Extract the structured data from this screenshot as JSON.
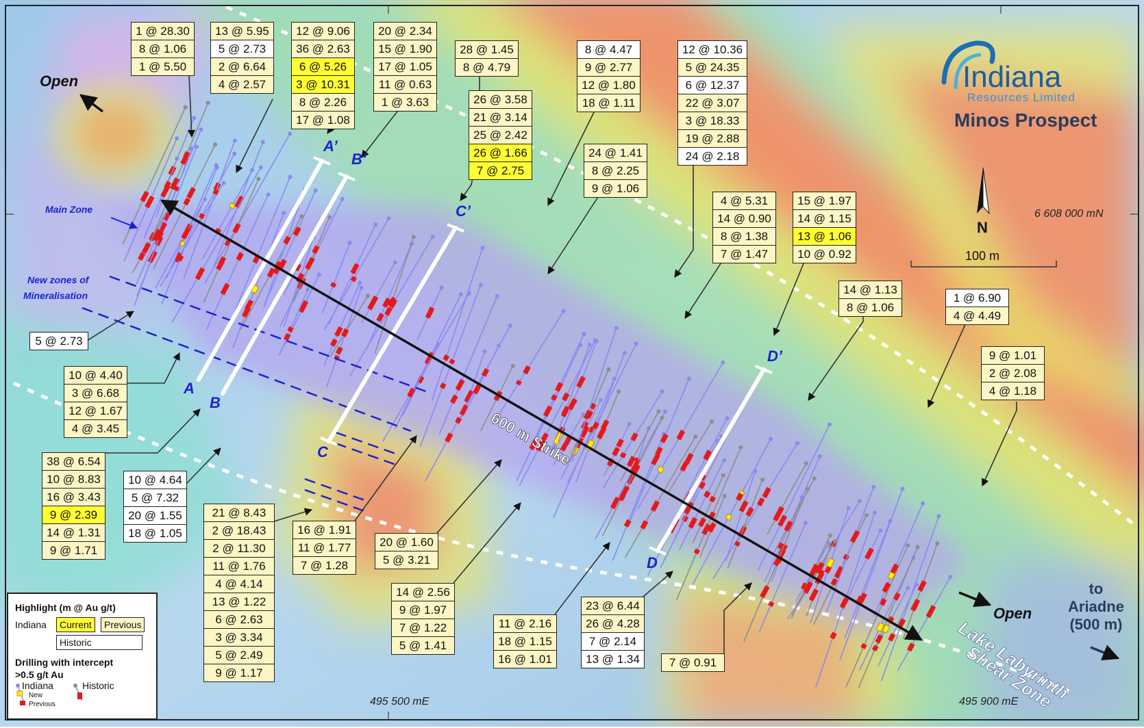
{
  "colors": {
    "indiana_hole": "#8a8aee",
    "historic_hole": "#8d8d8d",
    "previous_intercept": "#e41a1a",
    "new_intercept": "#ffef00",
    "current_highlight": "#ffff33",
    "previous_highlight": "#fdf5c4",
    "historic_highlight": "#ffffff",
    "section_label": "#1a22d0"
  },
  "header": {
    "logo_name": "Indiana",
    "logo_subtitle": "Resources Limited",
    "prospect_title": "Minos Prospect"
  },
  "north_arrow": {
    "label": "N",
    "icon": "north-arrow-icon"
  },
  "scale_bar": {
    "label": "100 m"
  },
  "coordinates": {
    "northing": "6 608 000 mN",
    "easting_1": "495 500 mE",
    "easting_2": "495 900 mE"
  },
  "map_labels": {
    "open_nw": "Open",
    "open_se": "Open",
    "main_zone": "Main Zone",
    "new_zones_line1": "New zones of",
    "new_zones_line2": "Mineralisation",
    "strike": "600 m Strike",
    "shear_line1": "Lake Labyrinth",
    "shear_line2": "Shear Zone",
    "ariadne_line1": "to",
    "ariadne_line2": "Ariadne",
    "ariadne_line3": "(500 m)"
  },
  "sections": {
    "a": "A",
    "a_prime": "A’",
    "b": "B",
    "b_prime": "B’",
    "c": "C",
    "c_prime": "C’",
    "d": "D",
    "d_prime": "D’"
  },
  "intercept_boxes": [
    {
      "rows": [
        {
          "t": "1 @ 28.30",
          "s": "p"
        },
        {
          "t": "8 @ 1.06",
          "s": "p"
        },
        {
          "t": "1 @ 5.50",
          "s": "p"
        }
      ]
    },
    {
      "rows": [
        {
          "t": "13 @ 5.95",
          "s": "p"
        },
        {
          "t": "5 @ 2.73",
          "s": "h"
        },
        {
          "t": "2 @ 6.64",
          "s": "p"
        },
        {
          "t": "4 @ 2.57",
          "s": "p"
        }
      ]
    },
    {
      "rows": [
        {
          "t": "12 @ 9.06",
          "s": "p"
        },
        {
          "t": "36 @ 2.63",
          "s": "p"
        },
        {
          "t": "6 @ 5.26",
          "s": "c"
        },
        {
          "t": "3 @ 10.31",
          "s": "c"
        },
        {
          "t": "8 @ 2.26",
          "s": "p"
        },
        {
          "t": "17 @ 1.08",
          "s": "p"
        }
      ]
    },
    {
      "rows": [
        {
          "t": "20 @ 2.34",
          "s": "p"
        },
        {
          "t": "15 @ 1.90",
          "s": "p"
        },
        {
          "t": "17 @ 1.05",
          "s": "p"
        },
        {
          "t": "11 @ 0.63",
          "s": "p"
        },
        {
          "t": "1 @ 3.63",
          "s": "p"
        }
      ]
    },
    {
      "rows": [
        {
          "t": "28 @ 1.45",
          "s": "p"
        },
        {
          "t": "8 @ 4.79",
          "s": "p"
        }
      ]
    },
    {
      "rows": [
        {
          "t": "26 @ 3.58",
          "s": "p"
        },
        {
          "t": "21 @ 3.14",
          "s": "p"
        },
        {
          "t": "25 @ 2.42",
          "s": "p"
        },
        {
          "t": "26 @ 1.66",
          "s": "c"
        },
        {
          "t": "7 @ 2.75",
          "s": "c"
        }
      ]
    },
    {
      "rows": [
        {
          "t": "8 @ 4.47",
          "s": "h"
        },
        {
          "t": "9 @ 2.77",
          "s": "p"
        },
        {
          "t": "12 @ 1.80",
          "s": "p"
        },
        {
          "t": "18 @ 1.11",
          "s": "p"
        }
      ]
    },
    {
      "rows": [
        {
          "t": "24 @ 1.41",
          "s": "p"
        },
        {
          "t": "8 @ 2.25",
          "s": "p"
        },
        {
          "t": "9 @ 1.06",
          "s": "p"
        }
      ]
    },
    {
      "rows": [
        {
          "t": "12 @ 10.36",
          "s": "h"
        },
        {
          "t": "5 @ 24.35",
          "s": "p"
        },
        {
          "t": "6 @ 12.37",
          "s": "h"
        },
        {
          "t": "22 @ 3.07",
          "s": "p"
        },
        {
          "t": "3 @ 18.33",
          "s": "p"
        },
        {
          "t": "19 @ 2.88",
          "s": "p"
        },
        {
          "t": "24 @ 2.18",
          "s": "h"
        }
      ]
    },
    {
      "rows": [
        {
          "t": "4 @ 5.31",
          "s": "p"
        },
        {
          "t": "14 @ 0.90",
          "s": "p"
        },
        {
          "t": "8 @ 1.38",
          "s": "p"
        },
        {
          "t": "7 @ 1.47",
          "s": "p"
        }
      ]
    },
    {
      "rows": [
        {
          "t": "15 @ 1.97",
          "s": "p"
        },
        {
          "t": "14 @ 1.15",
          "s": "p"
        },
        {
          "t": "13 @ 1.06",
          "s": "c"
        },
        {
          "t": "10 @ 0.92",
          "s": "p"
        }
      ]
    },
    {
      "rows": [
        {
          "t": "14 @ 1.13",
          "s": "p"
        },
        {
          "t": "8 @ 1.06",
          "s": "p"
        }
      ]
    },
    {
      "rows": [
        {
          "t": "1 @ 6.90",
          "s": "h"
        },
        {
          "t": "4 @ 4.49",
          "s": "p"
        }
      ]
    },
    {
      "rows": [
        {
          "t": "9 @ 1.01",
          "s": "p"
        },
        {
          "t": "2 @ 2.08",
          "s": "p"
        },
        {
          "t": "4 @ 1.18",
          "s": "p"
        }
      ]
    },
    {
      "rows": [
        {
          "t": "5 @ 2.73",
          "s": "h"
        }
      ]
    },
    {
      "rows": [
        {
          "t": "10 @ 4.40",
          "s": "p"
        },
        {
          "t": "3 @ 6.68",
          "s": "p"
        },
        {
          "t": "12 @ 1.67",
          "s": "p"
        },
        {
          "t": "4 @ 3.45",
          "s": "p"
        }
      ]
    },
    {
      "rows": [
        {
          "t": "38 @ 6.54",
          "s": "p"
        },
        {
          "t": "10 @ 8.83",
          "s": "p"
        },
        {
          "t": "16 @ 3.43",
          "s": "p"
        },
        {
          "t": "9 @ 2.39",
          "s": "c"
        },
        {
          "t": "14 @ 1.31",
          "s": "p"
        },
        {
          "t": "9 @ 1.71",
          "s": "p"
        }
      ]
    },
    {
      "rows": [
        {
          "t": "10 @ 4.64",
          "s": "h"
        },
        {
          "t": "5 @ 7.32",
          "s": "h"
        },
        {
          "t": "20 @ 1.55",
          "s": "h"
        },
        {
          "t": "18 @ 1.05",
          "s": "h"
        }
      ]
    },
    {
      "rows": [
        {
          "t": "21 @ 8.43",
          "s": "p"
        },
        {
          "t": "2 @ 18.43",
          "s": "p"
        },
        {
          "t": "2 @ 11.30",
          "s": "p"
        },
        {
          "t": "11 @ 1.76",
          "s": "p"
        },
        {
          "t": "4 @ 4.14",
          "s": "p"
        },
        {
          "t": "13 @ 1.22",
          "s": "p"
        },
        {
          "t": "6 @ 2.63",
          "s": "p"
        },
        {
          "t": "3 @ 3.34",
          "s": "p"
        },
        {
          "t": "5 @ 2.49",
          "s": "p"
        },
        {
          "t": "9 @ 1.17",
          "s": "p"
        }
      ]
    },
    {
      "rows": [
        {
          "t": "16 @ 1.91",
          "s": "p"
        },
        {
          "t": "11 @ 1.77",
          "s": "p"
        },
        {
          "t": "7 @ 1.28",
          "s": "p"
        }
      ]
    },
    {
      "rows": [
        {
          "t": "20 @ 1.60",
          "s": "p"
        },
        {
          "t": "5 @ 3.21",
          "s": "p"
        }
      ]
    },
    {
      "rows": [
        {
          "t": "14 @ 2.56",
          "s": "p"
        },
        {
          "t": "9 @ 1.97",
          "s": "p"
        },
        {
          "t": "7 @ 1.22",
          "s": "p"
        },
        {
          "t": "5 @ 1.41",
          "s": "p"
        }
      ]
    },
    {
      "rows": [
        {
          "t": "11 @ 2.16",
          "s": "p"
        },
        {
          "t": "18 @ 1.15",
          "s": "p"
        },
        {
          "t": "16 @ 1.01",
          "s": "p"
        }
      ]
    },
    {
      "rows": [
        {
          "t": "23 @ 6.44",
          "s": "p"
        },
        {
          "t": "26 @ 4.28",
          "s": "p"
        },
        {
          "t": "7 @ 2.14",
          "s": "h"
        },
        {
          "t": "13 @ 1.34",
          "s": "h"
        }
      ]
    },
    {
      "rows": [
        {
          "t": "7 @ 0.91",
          "s": "p"
        }
      ]
    }
  ],
  "legend": {
    "title": "Highlight (m @ Au g/t)",
    "indiana": "Indiana",
    "current": "Current",
    "previous": "Previous",
    "historic": "Historic",
    "drilling_line1": "Drilling with intercept",
    "drilling_line2": ">0.5 g/t Au",
    "indiana_hole": "Indiana",
    "historic_hole": "Historic",
    "new": "New",
    "previous_small": "Previous"
  }
}
